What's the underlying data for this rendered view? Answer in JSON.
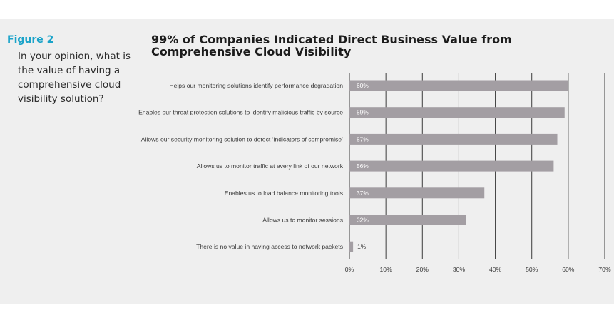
{
  "figure": {
    "label": "Figure 2",
    "question": "In your opinion, what is the value of having a comprehensive cloud visibility solution?"
  },
  "colors": {
    "accent": "#1aa3c9",
    "bar": "#a39ea3",
    "grid": "#3c3c3c",
    "panel": "#efefef"
  },
  "chart_data": {
    "type": "bar",
    "orientation": "horizontal",
    "title": "99% of Companies Indicated Direct Business Value from Comprehensive Cloud Visibility",
    "categories": [
      "Helps our monitoring solutions identify performance degradation",
      "Enables our threat protection solutions to identify malicious traffic by source",
      "Allows our security monitoring solution to detect ‘indicators of compromise’",
      "Allows us to monitor traffic at every link of our network",
      "Enables us to load balance monitoring tools",
      "Allows us to monitor sessions",
      "There is no value in having access to network packets"
    ],
    "values": [
      60,
      59,
      57,
      56,
      37,
      32,
      1
    ],
    "value_labels": [
      "60%",
      "59%",
      "57%",
      "56%",
      "37%",
      "32%",
      "1%"
    ],
    "x_ticks": [
      "0%",
      "10%",
      "20%",
      "30%",
      "40%",
      "50%",
      "60%",
      "70%"
    ],
    "xlim": [
      0,
      70
    ],
    "grid": true,
    "legend": "none"
  }
}
